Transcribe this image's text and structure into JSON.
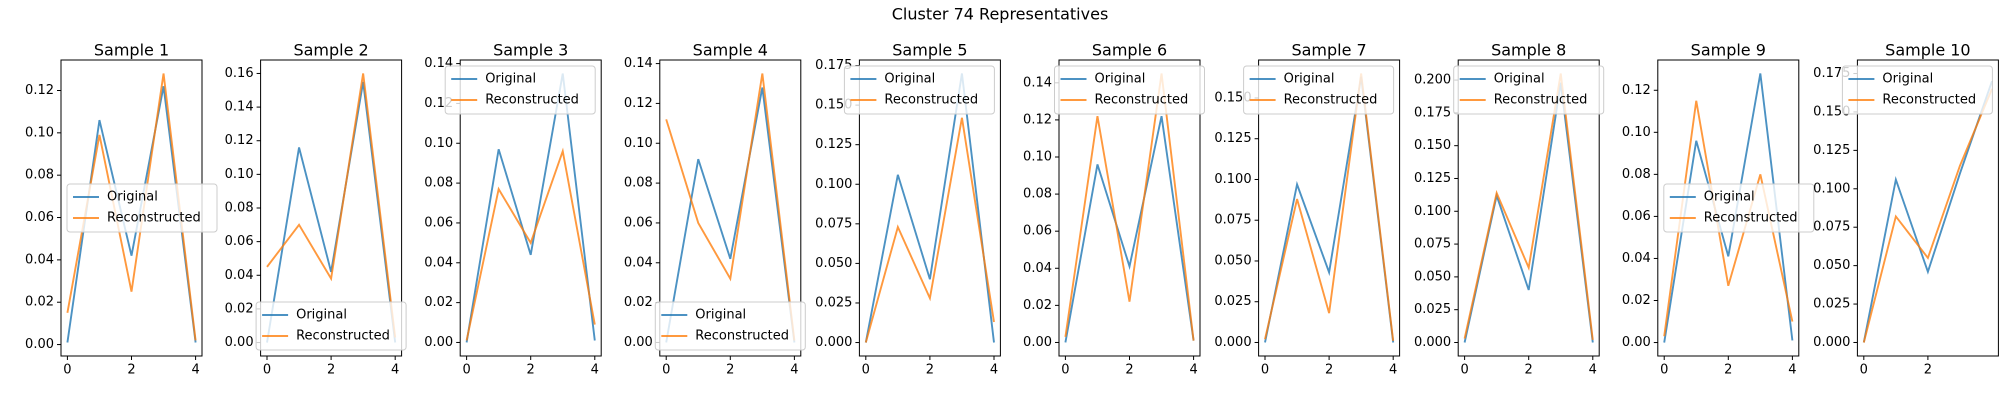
{
  "title": "Cluster 74 Representatives",
  "chart_data": [
    {
      "type": "line",
      "title": "Sample 1",
      "x": [
        0,
        1,
        2,
        3,
        4
      ],
      "xlim": [
        -0.2,
        4.2
      ],
      "xticks": [
        0,
        2,
        4
      ],
      "ylim": [
        -0.0054,
        0.1344
      ],
      "yticks": [
        {
          "value": 0,
          "label": "0.00"
        },
        0.02,
        0.04,
        0.06,
        0.08,
        {
          "value": 0.1,
          "label": "0.10"
        },
        0.12
      ],
      "legend": "center left",
      "series": [
        {
          "name": "Original",
          "color": "#1f77b4",
          "values": [
            0.001,
            0.106,
            0.042,
            0.122,
            0.001
          ]
        },
        {
          "name": "Reconstructed",
          "color": "#ff7f0e",
          "values": [
            0.015,
            0.099,
            0.025,
            0.128,
            0.002
          ]
        }
      ]
    },
    {
      "type": "line",
      "title": "Sample 2",
      "x": [
        0,
        1,
        2,
        3,
        4
      ],
      "xlim": [
        -0.2,
        4.2
      ],
      "xticks": [
        0,
        2,
        4
      ],
      "ylim": [
        -0.008,
        0.168
      ],
      "yticks": [
        {
          "value": 0,
          "label": "0.00"
        },
        0.02,
        0.04,
        0.06,
        0.08,
        {
          "value": 0.1,
          "label": "0.10"
        },
        0.12,
        0.14,
        0.16
      ],
      "legend": "lower center",
      "series": [
        {
          "name": "Original",
          "color": "#1f77b4",
          "values": [
            0.0,
            0.116,
            0.042,
            0.155,
            0.0
          ]
        },
        {
          "name": "Reconstructed",
          "color": "#ff7f0e",
          "values": [
            0.045,
            0.07,
            0.038,
            0.16,
            0.003
          ]
        }
      ]
    },
    {
      "type": "line",
      "title": "Sample 3",
      "x": [
        0,
        1,
        2,
        3,
        4
      ],
      "xlim": [
        -0.2,
        4.2
      ],
      "xticks": [
        0,
        2,
        4
      ],
      "ylim": [
        -0.0068,
        0.1418
      ],
      "yticks": [
        {
          "value": 0,
          "label": "0.00"
        },
        0.02,
        0.04,
        0.06,
        0.08,
        {
          "value": 0.1,
          "label": "0.10"
        },
        0.12,
        0.14
      ],
      "legend": "upper right",
      "series": [
        {
          "name": "Original",
          "color": "#1f77b4",
          "values": [
            0.0,
            0.097,
            0.044,
            0.135,
            0.001
          ]
        },
        {
          "name": "Reconstructed",
          "color": "#ff7f0e",
          "values": [
            0.001,
            0.077,
            0.05,
            0.096,
            0.009
          ]
        }
      ]
    },
    {
      "type": "line",
      "title": "Sample 4",
      "x": [
        0,
        1,
        2,
        3,
        4
      ],
      "xlim": [
        -0.2,
        4.2
      ],
      "xticks": [
        0,
        2,
        4
      ],
      "ylim": [
        -0.0068,
        0.1418
      ],
      "yticks": [
        {
          "value": 0,
          "label": "0.00"
        },
        0.02,
        0.04,
        0.06,
        0.08,
        {
          "value": 0.1,
          "label": "0.10"
        },
        0.12,
        0.14
      ],
      "legend": "lower center",
      "series": [
        {
          "name": "Original",
          "color": "#1f77b4",
          "values": [
            0.0,
            0.092,
            0.042,
            0.128,
            0.0
          ]
        },
        {
          "name": "Reconstructed",
          "color": "#ff7f0e",
          "values": [
            0.112,
            0.06,
            0.032,
            0.135,
            0.001
          ]
        }
      ]
    },
    {
      "type": "line",
      "title": "Sample 5",
      "x": [
        0,
        1,
        2,
        3,
        4
      ],
      "xlim": [
        -0.2,
        4.2
      ],
      "xticks": [
        0,
        2,
        4
      ],
      "ylim": [
        -0.0085,
        0.1785
      ],
      "yticks": [
        {
          "value": 0,
          "label": "0.000"
        },
        0.025,
        {
          "value": 0.05,
          "label": "0.050"
        },
        0.075,
        {
          "value": 0.1,
          "label": "0.100"
        },
        0.125,
        {
          "value": 0.15,
          "label": "0.150"
        },
        0.175
      ],
      "legend": "upper right",
      "series": [
        {
          "name": "Original",
          "color": "#1f77b4",
          "values": [
            0.0,
            0.106,
            0.04,
            0.17,
            0.0
          ]
        },
        {
          "name": "Reconstructed",
          "color": "#ff7f0e",
          "values": [
            0.0,
            0.073,
            0.028,
            0.142,
            0.013
          ]
        }
      ]
    },
    {
      "type": "line",
      "title": "Sample 6",
      "x": [
        0,
        1,
        2,
        3,
        4
      ],
      "xlim": [
        -0.2,
        4.2
      ],
      "xticks": [
        0,
        2,
        4
      ],
      "ylim": [
        -0.0073,
        0.1523
      ],
      "yticks": [
        {
          "value": 0,
          "label": "0.00"
        },
        0.02,
        0.04,
        0.06,
        0.08,
        {
          "value": 0.1,
          "label": "0.10"
        },
        0.12,
        0.14
      ],
      "legend": "upper center",
      "series": [
        {
          "name": "Original",
          "color": "#1f77b4",
          "values": [
            0.0,
            0.096,
            0.041,
            0.122,
            0.001
          ]
        },
        {
          "name": "Reconstructed",
          "color": "#ff7f0e",
          "values": [
            0.003,
            0.122,
            0.022,
            0.145,
            0.001
          ]
        }
      ]
    },
    {
      "type": "line",
      "title": "Sample 7",
      "x": [
        0,
        1,
        2,
        3,
        4
      ],
      "xlim": [
        -0.2,
        4.2
      ],
      "xticks": [
        0,
        2,
        4
      ],
      "ylim": [
        -0.0083,
        0.1733
      ],
      "yticks": [
        {
          "value": 0,
          "label": "0.000"
        },
        0.025,
        {
          "value": 0.05,
          "label": "0.050"
        },
        0.075,
        {
          "value": 0.1,
          "label": "0.100"
        },
        0.125,
        {
          "value": 0.15,
          "label": "0.150"
        }
      ],
      "legend": "upper right",
      "series": [
        {
          "name": "Original",
          "color": "#1f77b4",
          "values": [
            0.0,
            0.097,
            0.043,
            0.163,
            0.0
          ]
        },
        {
          "name": "Reconstructed",
          "color": "#ff7f0e",
          "values": [
            0.002,
            0.088,
            0.018,
            0.165,
            0.001
          ]
        }
      ]
    },
    {
      "type": "line",
      "title": "Sample 8",
      "x": [
        0,
        1,
        2,
        3,
        4
      ],
      "xlim": [
        -0.2,
        4.2
      ],
      "xticks": [
        0,
        2,
        4
      ],
      "ylim": [
        -0.0103,
        0.2153
      ],
      "yticks": [
        {
          "value": 0,
          "label": "0.000"
        },
        0.025,
        {
          "value": 0.05,
          "label": "0.050"
        },
        0.075,
        {
          "value": 0.1,
          "label": "0.100"
        },
        0.125,
        {
          "value": 0.15,
          "label": "0.150"
        },
        0.175,
        {
          "value": 0.2,
          "label": "0.200"
        }
      ],
      "legend": "upper center",
      "series": [
        {
          "name": "Original",
          "color": "#1f77b4",
          "values": [
            0.0,
            0.112,
            0.04,
            0.198,
            0.0
          ]
        },
        {
          "name": "Reconstructed",
          "color": "#ff7f0e",
          "values": [
            0.003,
            0.114,
            0.057,
            0.205,
            0.002
          ]
        }
      ]
    },
    {
      "type": "line",
      "title": "Sample 9",
      "x": [
        0,
        1,
        2,
        3,
        4
      ],
      "xlim": [
        -0.2,
        4.2
      ],
      "xticks": [
        0,
        2,
        4
      ],
      "ylim": [
        -0.0064,
        0.1344
      ],
      "yticks": [
        {
          "value": 0,
          "label": "0.00"
        },
        0.02,
        0.04,
        0.06,
        0.08,
        {
          "value": 0.1,
          "label": "0.10"
        },
        0.12
      ],
      "legend": "center left",
      "series": [
        {
          "name": "Original",
          "color": "#1f77b4",
          "values": [
            0.0,
            0.096,
            0.041,
            0.128,
            0.001
          ]
        },
        {
          "name": "Reconstructed",
          "color": "#ff7f0e",
          "values": [
            0.003,
            0.115,
            0.027,
            0.08,
            0.01
          ]
        }
      ]
    },
    {
      "type": "line",
      "title": "Sample 10",
      "x": [
        0,
        1,
        2,
        3,
        4
      ],
      "xlim": [
        -0.2,
        4.2
      ],
      "xticks": [
        0,
        2
      ],
      "ylim": [
        -0.0088,
        0.1838
      ],
      "yticks": [
        {
          "value": 0,
          "label": "0.000"
        },
        0.025,
        {
          "value": 0.05,
          "label": "0.050"
        },
        0.075,
        {
          "value": 0.1,
          "label": "0.100"
        },
        0.125,
        {
          "value": 0.15,
          "label": "0.150"
        },
        0.175
      ],
      "legend": "upper right",
      "series": [
        {
          "name": "Original",
          "color": "#1f77b4",
          "values": [
            0.0,
            0.106,
            0.046,
            0.11,
            0.17
          ]
        },
        {
          "name": "Reconstructed",
          "color": "#ff7f0e",
          "values": [
            0.0,
            0.082,
            0.055,
            0.115,
            0.165
          ]
        }
      ]
    }
  ]
}
